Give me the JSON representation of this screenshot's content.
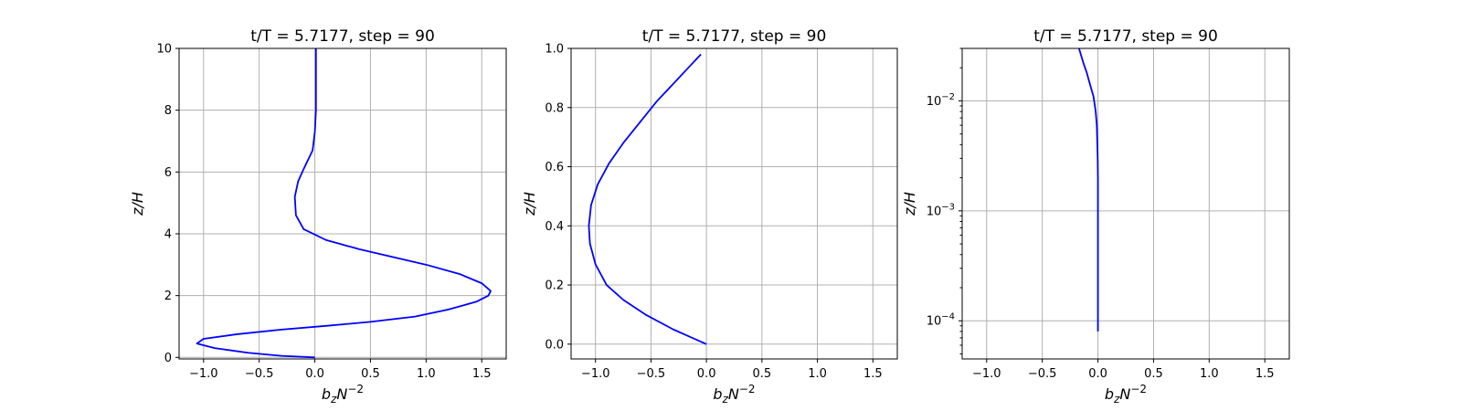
{
  "colors": {
    "series": "#0000ff",
    "grid": "#b0b0b0",
    "axes": "#000000"
  },
  "chart_data": [
    {
      "type": "line",
      "title": "t/T = 5.7177, step = 90",
      "xlabel": "b_zN^{-2}",
      "ylabel": "z/H",
      "xlim": [
        -1.22,
        1.72
      ],
      "ylim": [
        -0.05,
        10
      ],
      "xscale": "linear",
      "yscale": "linear",
      "grid": true,
      "x_ticks": [
        -1.0,
        -0.5,
        0.0,
        0.5,
        1.0,
        1.5
      ],
      "x_tick_labels": [
        "−1.0",
        "−0.5",
        "0.0",
        "0.5",
        "1.0",
        "1.5"
      ],
      "y_ticks": [
        0,
        2,
        4,
        6,
        8,
        10
      ],
      "y_tick_labels": [
        "0",
        "2",
        "4",
        "6",
        "8",
        "10"
      ],
      "series": [
        {
          "x": [
            0.0,
            -0.3,
            -0.6,
            -0.9,
            -1.06,
            -1.0,
            -0.7,
            -0.3,
            0.1,
            0.5,
            0.9,
            1.2,
            1.45,
            1.56,
            1.58,
            1.5,
            1.3,
            1.0,
            0.7,
            0.4,
            0.1,
            -0.1,
            -0.17,
            -0.18,
            -0.15,
            -0.1,
            -0.02,
            0.0,
            0.01,
            0.01,
            0.01
          ],
          "y": [
            0.0,
            0.05,
            0.15,
            0.3,
            0.45,
            0.6,
            0.75,
            0.9,
            1.02,
            1.15,
            1.32,
            1.55,
            1.8,
            2.0,
            2.15,
            2.4,
            2.7,
            3.0,
            3.25,
            3.5,
            3.8,
            4.15,
            4.6,
            5.2,
            5.7,
            6.1,
            6.7,
            7.3,
            8.0,
            9.0,
            10.0
          ]
        }
      ]
    },
    {
      "type": "line",
      "title": "t/T = 5.7177, step = 90",
      "xlabel": "b_zN^{-2}",
      "ylabel": "z/H",
      "xlim": [
        -1.22,
        1.72
      ],
      "ylim": [
        -0.05,
        1.0
      ],
      "xscale": "linear",
      "yscale": "linear",
      "grid": true,
      "x_ticks": [
        -1.0,
        -0.5,
        0.0,
        0.5,
        1.0,
        1.5
      ],
      "x_tick_labels": [
        "−1.0",
        "−0.5",
        "0.0",
        "0.5",
        "1.0",
        "1.5"
      ],
      "y_ticks": [
        0.0,
        0.2,
        0.4,
        0.6,
        0.8,
        1.0
      ],
      "y_tick_labels": [
        "0.0",
        "0.2",
        "0.4",
        "0.6",
        "0.8",
        "1.0"
      ],
      "series": [
        {
          "x": [
            0.0,
            -0.3,
            -0.55,
            -0.75,
            -0.9,
            -1.0,
            -1.05,
            -1.06,
            -1.04,
            -0.98,
            -0.88,
            -0.75,
            -0.6,
            -0.45,
            -0.3,
            -0.15,
            -0.05
          ],
          "y": [
            0.0,
            0.05,
            0.1,
            0.15,
            0.2,
            0.27,
            0.34,
            0.4,
            0.47,
            0.54,
            0.61,
            0.68,
            0.75,
            0.82,
            0.88,
            0.94,
            0.98
          ]
        }
      ]
    },
    {
      "type": "line",
      "title": "t/T = 5.7177, step = 90",
      "xlabel": "b_zN^{-2}",
      "ylabel": "z/H",
      "xlim": [
        -1.22,
        1.72
      ],
      "ylim": [
        4.5e-05,
        0.03
      ],
      "xscale": "linear",
      "yscale": "log",
      "grid": true,
      "x_ticks": [
        -1.0,
        -0.5,
        0.0,
        0.5,
        1.0,
        1.5
      ],
      "x_tick_labels": [
        "−1.0",
        "−0.5",
        "0.0",
        "0.5",
        "1.0",
        "1.5"
      ],
      "y_ticks": [
        0.0001,
        0.001,
        0.01
      ],
      "y_tick_labels": [
        {
          "base": "10",
          "exp": "−4"
        },
        {
          "base": "10",
          "exp": "−3"
        },
        {
          "base": "10",
          "exp": "−2"
        }
      ],
      "series": [
        {
          "x": [
            0.0,
            0.0,
            0.0,
            0.0,
            0.0,
            0.0,
            -0.002,
            -0.005,
            -0.01,
            -0.02,
            -0.04,
            -0.07,
            -0.1,
            -0.13,
            -0.17
          ],
          "y": [
            8e-05,
            0.0001,
            0.0002,
            0.0005,
            0.001,
            0.002,
            0.003,
            0.004,
            0.006,
            0.008,
            0.011,
            0.014,
            0.018,
            0.022,
            0.03
          ]
        }
      ]
    }
  ]
}
